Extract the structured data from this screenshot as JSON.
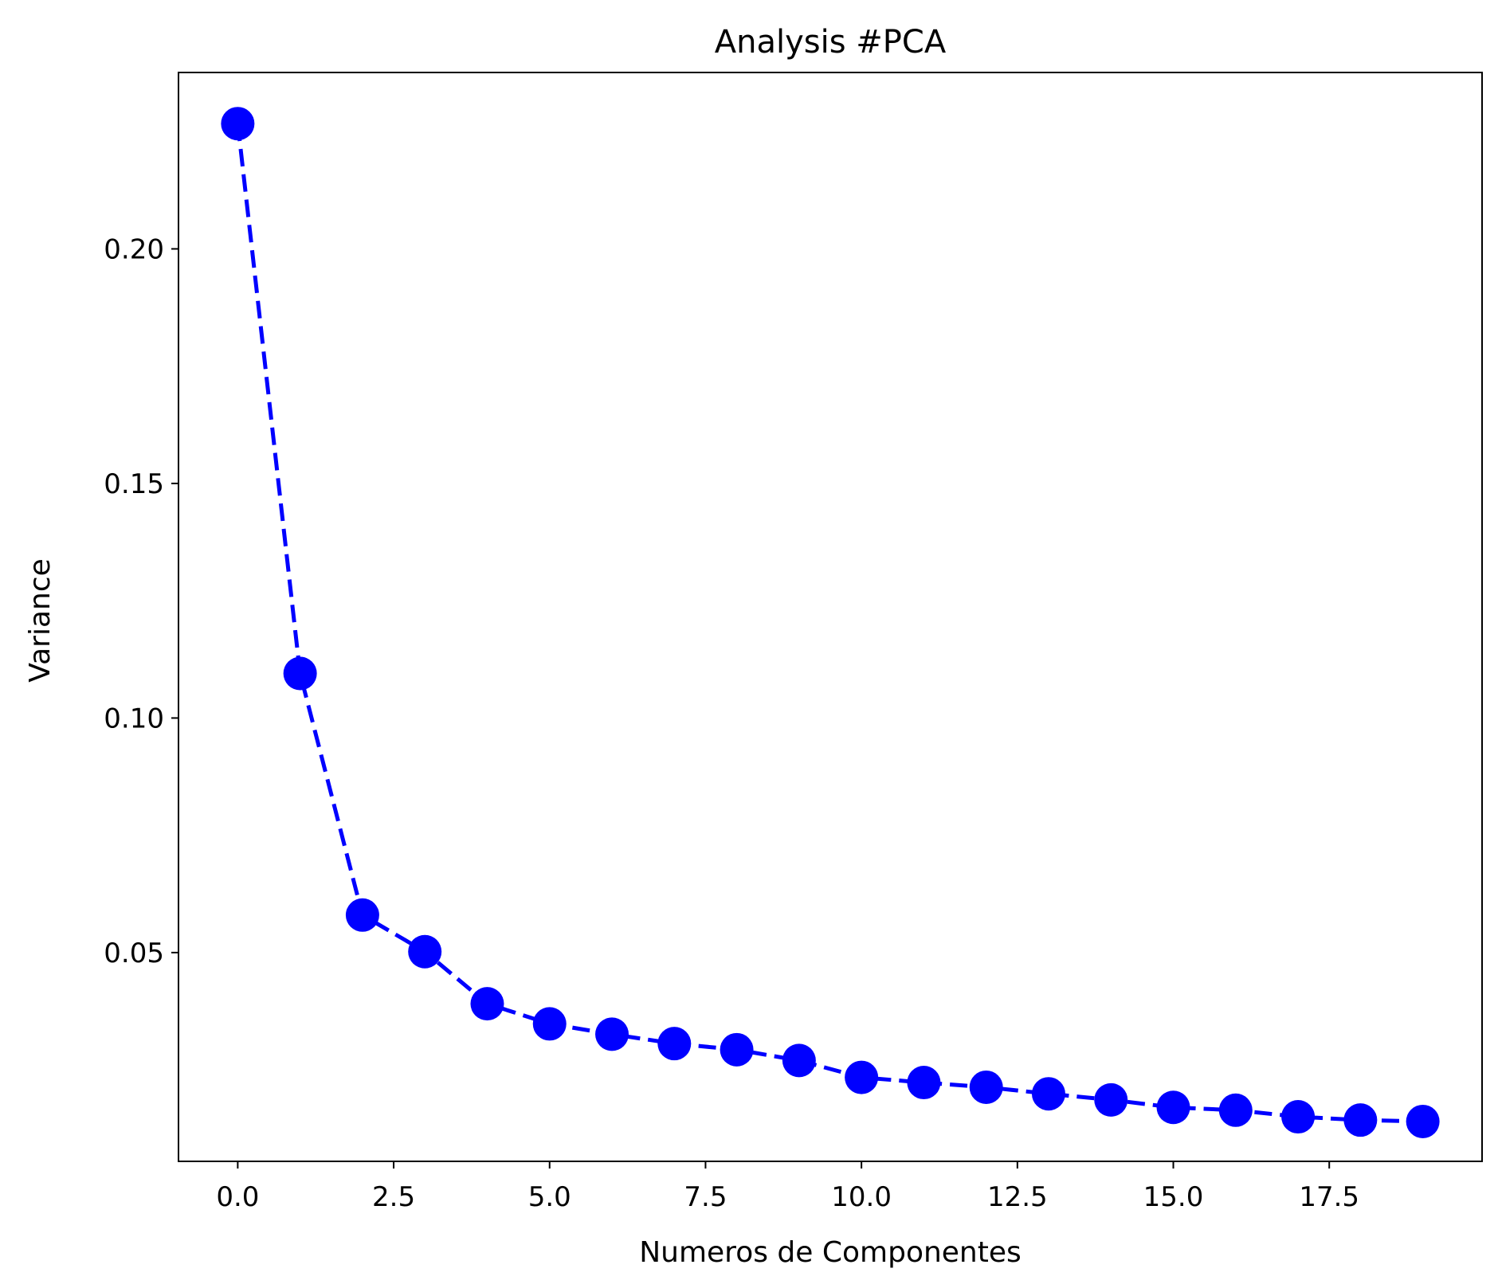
{
  "chart_data": {
    "type": "line",
    "title": "Analysis #PCA",
    "xlabel": "Numeros de Componentes",
    "ylabel": "Variance",
    "x": [
      0,
      1,
      2,
      3,
      4,
      5,
      6,
      7,
      8,
      9,
      10,
      11,
      12,
      13,
      14,
      15,
      16,
      17,
      18,
      19
    ],
    "series": [
      {
        "values": [
          0.2267,
          0.1095,
          0.058,
          0.0502,
          0.0391,
          0.0348,
          0.0326,
          0.0306,
          0.0293,
          0.027,
          0.0234,
          0.0223,
          0.0213,
          0.0199,
          0.0186,
          0.017,
          0.0164,
          0.015,
          0.0143,
          0.014
        ],
        "color": "#0000ff",
        "line_style": "dashed",
        "marker": "circle"
      }
    ],
    "xlim": [
      -0.95,
      19.95
    ],
    "ylim": [
      0.0055,
      0.2376
    ],
    "xticks": [
      0.0,
      2.5,
      5.0,
      7.5,
      10.0,
      12.5,
      15.0,
      17.5
    ],
    "xtick_labels": [
      "0.0",
      "2.5",
      "5.0",
      "7.5",
      "10.0",
      "12.5",
      "15.0",
      "17.5"
    ],
    "yticks": [
      0.05,
      0.1,
      0.15,
      0.2
    ],
    "ytick_labels": [
      "0.05",
      "0.10",
      "0.15",
      "0.20"
    ],
    "grid": false,
    "legend": "none"
  }
}
